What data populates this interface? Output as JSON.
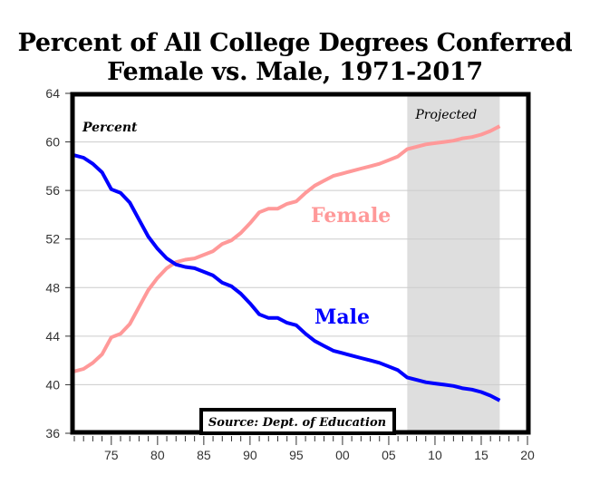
{
  "chart_data": {
    "type": "line",
    "title": "Percent of All College Degrees Conferred",
    "subtitle": "Female vs. Male, 1971-2017",
    "ylabel": "Percent",
    "xlabel": "",
    "ylim": [
      36,
      64
    ],
    "xlim": [
      1971,
      2020
    ],
    "yticks": [
      36,
      40,
      44,
      48,
      52,
      56,
      60,
      64
    ],
    "xticks": [
      {
        "v": 1975,
        "label": "75"
      },
      {
        "v": 1980,
        "label": "80"
      },
      {
        "v": 1985,
        "label": "85"
      },
      {
        "v": 1990,
        "label": "90"
      },
      {
        "v": 1995,
        "label": "95"
      },
      {
        "v": 2000,
        "label": "00"
      },
      {
        "v": 2005,
        "label": "05"
      },
      {
        "v": 2010,
        "label": "10"
      },
      {
        "v": 2015,
        "label": "15"
      },
      {
        "v": 2020,
        "label": "20"
      }
    ],
    "grid": true,
    "shaded_region": {
      "from": 2007,
      "to": 2017,
      "label": "Projected",
      "color": "#dedede"
    },
    "source": "Source: Dept. of Education",
    "x": [
      1971,
      1972,
      1973,
      1974,
      1975,
      1976,
      1977,
      1978,
      1979,
      1980,
      1981,
      1982,
      1983,
      1984,
      1985,
      1986,
      1987,
      1988,
      1989,
      1990,
      1991,
      1992,
      1993,
      1994,
      1995,
      1996,
      1997,
      1998,
      1999,
      2000,
      2001,
      2002,
      2003,
      2004,
      2005,
      2006,
      2007,
      2008,
      2009,
      2010,
      2011,
      2012,
      2013,
      2014,
      2015,
      2016,
      2017
    ],
    "series": [
      {
        "name": "Female",
        "color": "#ff9999",
        "values": [
          41.1,
          41.3,
          41.8,
          42.5,
          43.9,
          44.2,
          45.0,
          46.4,
          47.8,
          48.8,
          49.6,
          50.1,
          50.3,
          50.4,
          50.7,
          51.0,
          51.6,
          51.9,
          52.5,
          53.3,
          54.2,
          54.5,
          54.5,
          54.9,
          55.1,
          55.8,
          56.4,
          56.8,
          57.2,
          57.4,
          57.6,
          57.8,
          58.0,
          58.2,
          58.5,
          58.8,
          59.4,
          59.6,
          59.8,
          59.9,
          60.0,
          60.1,
          60.3,
          60.4,
          60.6,
          60.9,
          61.3
        ]
      },
      {
        "name": "Male",
        "color": "#0000ff",
        "values": [
          58.9,
          58.7,
          58.2,
          57.5,
          56.1,
          55.8,
          55.0,
          53.6,
          52.2,
          51.2,
          50.4,
          49.9,
          49.7,
          49.6,
          49.3,
          49.0,
          48.4,
          48.1,
          47.5,
          46.7,
          45.8,
          45.5,
          45.5,
          45.1,
          44.9,
          44.2,
          43.6,
          43.2,
          42.8,
          42.6,
          42.4,
          42.2,
          42.0,
          41.8,
          41.5,
          41.2,
          40.6,
          40.4,
          40.2,
          40.1,
          40.0,
          39.9,
          39.7,
          39.6,
          39.4,
          39.1,
          38.7
        ]
      }
    ]
  }
}
